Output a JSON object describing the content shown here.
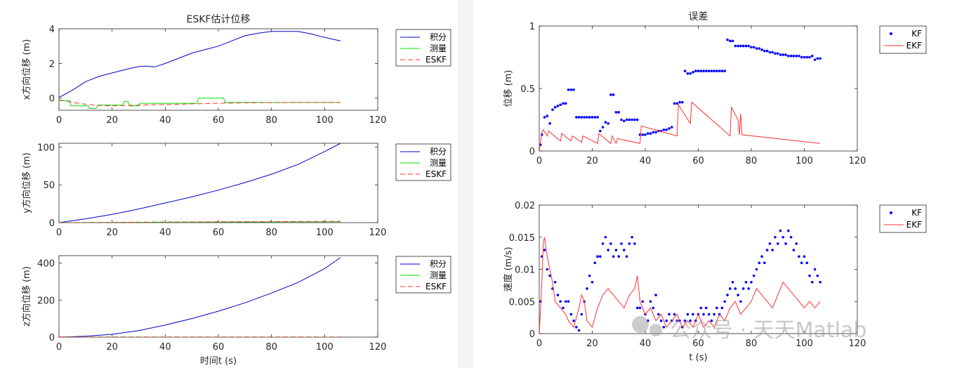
{
  "watermark": "公众号 · 天天Matlab",
  "colors": {
    "blue": "#0000ff",
    "navy": "#0000c8",
    "green": "#00e000",
    "red": "#ff3030",
    "axis": "#262626"
  },
  "chart_data": [
    {
      "id": "x",
      "type": "line",
      "title": "ESKF估计位移",
      "ylabel": "x方向位移 (m)",
      "xlabel": "",
      "xlim": [
        0,
        120
      ],
      "ylim": [
        -0.7,
        4
      ],
      "xticks": [
        0,
        20,
        40,
        60,
        80,
        100,
        120
      ],
      "yticks": [
        0,
        2,
        4
      ],
      "legend": [
        "积分",
        "测量",
        "ESKF"
      ],
      "series": [
        {
          "name": "积分",
          "x": [
            0,
            2,
            5,
            10,
            15,
            20,
            25,
            30,
            33,
            36,
            40,
            45,
            50,
            55,
            60,
            65,
            70,
            75,
            80,
            85,
            90,
            95,
            100,
            106
          ],
          "y": [
            0.05,
            0.2,
            0.45,
            0.95,
            1.25,
            1.45,
            1.65,
            1.82,
            1.85,
            1.8,
            2.0,
            2.3,
            2.6,
            2.8,
            3.0,
            3.3,
            3.6,
            3.75,
            3.85,
            3.85,
            3.85,
            3.7,
            3.5,
            3.3
          ]
        },
        {
          "name": "测量",
          "x": [
            0,
            4,
            4.5,
            11,
            11.5,
            14,
            14.5,
            24,
            24.5,
            26,
            26.5,
            30,
            30.5,
            52,
            52.5,
            62,
            62.5,
            106
          ],
          "y": [
            -0.15,
            -0.15,
            -0.45,
            -0.45,
            -0.6,
            -0.6,
            -0.4,
            -0.4,
            -0.2,
            -0.2,
            -0.45,
            -0.45,
            -0.3,
            -0.3,
            0,
            0,
            -0.25,
            -0.25
          ]
        },
        {
          "name": "ESKF",
          "x": [
            0,
            5,
            10,
            15,
            20,
            25,
            30,
            40,
            50,
            60,
            70,
            80,
            90,
            106
          ],
          "y": [
            -0.1,
            -0.25,
            -0.35,
            -0.42,
            -0.44,
            -0.43,
            -0.4,
            -0.37,
            -0.33,
            -0.3,
            -0.27,
            -0.26,
            -0.25,
            -0.25
          ]
        }
      ]
    },
    {
      "id": "y",
      "type": "line",
      "title": "",
      "ylabel": "y方向位移 (m)",
      "xlabel": "",
      "xlim": [
        0,
        120
      ],
      "ylim": [
        0,
        105
      ],
      "xticks": [
        0,
        20,
        40,
        60,
        80,
        100,
        120
      ],
      "yticks": [
        0,
        50,
        100
      ],
      "legend": [
        "积分",
        "测量",
        "ESKF"
      ],
      "series": [
        {
          "name": "积分",
          "x": [
            0,
            10,
            20,
            30,
            40,
            50,
            60,
            70,
            80,
            90,
            100,
            106
          ],
          "y": [
            0,
            5,
            11,
            18,
            26,
            34,
            43,
            53,
            64,
            77,
            94,
            105
          ]
        },
        {
          "name": "测量",
          "x": [
            0,
            20,
            40,
            60,
            80,
            100,
            106
          ],
          "y": [
            0,
            0.3,
            0.6,
            0.8,
            1,
            1.2,
            1.3
          ]
        },
        {
          "name": "ESKF",
          "x": [
            0,
            20,
            40,
            60,
            80,
            100,
            106
          ],
          "y": [
            0,
            0.4,
            0.8,
            1.1,
            1.4,
            1.6,
            1.7
          ]
        }
      ]
    },
    {
      "id": "z",
      "type": "line",
      "title": "",
      "ylabel": "z方向位移 (m)",
      "xlabel": "时间t (s)",
      "xlim": [
        0,
        120
      ],
      "ylim": [
        0,
        440
      ],
      "xticks": [
        0,
        20,
        40,
        60,
        80,
        100,
        120
      ],
      "yticks": [
        0,
        200,
        400
      ],
      "legend": [
        "积分",
        "测量",
        "ESKF"
      ],
      "series": [
        {
          "name": "积分",
          "x": [
            0,
            10,
            20,
            30,
            40,
            50,
            60,
            70,
            80,
            90,
            100,
            106
          ],
          "y": [
            0,
            5,
            15,
            35,
            65,
            100,
            140,
            185,
            238,
            295,
            370,
            430
          ]
        },
        {
          "name": "测量",
          "x": [
            0,
            106
          ],
          "y": [
            0,
            0
          ]
        },
        {
          "name": "ESKF",
          "x": [
            0,
            106
          ],
          "y": [
            1,
            1
          ]
        }
      ]
    },
    {
      "id": "pos",
      "type": "scatter",
      "title": "误差",
      "ylabel": "位移 (m)",
      "xlabel": "",
      "xlim": [
        0,
        120
      ],
      "ylim": [
        0,
        1
      ],
      "xticks": [
        0,
        20,
        40,
        60,
        80,
        100,
        120
      ],
      "yticks": [
        0,
        0.5,
        1
      ],
      "legend": [
        "KF",
        "EKF"
      ],
      "series": [
        {
          "name": "KF",
          "x": [
            0.5,
            1,
            2,
            3,
            4,
            5,
            6,
            7,
            8,
            9,
            10,
            11,
            12,
            13,
            14,
            15,
            16,
            17,
            18,
            19,
            20,
            21,
            22,
            23,
            24,
            25,
            26,
            27,
            28,
            29,
            30,
            31,
            32,
            33,
            34,
            35,
            36,
            37,
            38,
            39,
            40,
            41,
            42,
            43,
            44,
            45,
            46,
            47,
            48,
            49,
            50,
            51,
            52,
            53,
            54,
            55,
            56,
            57,
            58,
            59,
            60,
            61,
            62,
            63,
            64,
            65,
            66,
            67,
            68,
            69,
            70,
            71,
            72,
            73,
            74,
            75,
            76,
            77,
            78,
            79,
            80,
            81,
            82,
            83,
            84,
            85,
            86,
            87,
            88,
            89,
            90,
            91,
            92,
            93,
            94,
            95,
            96,
            97,
            98,
            99,
            100,
            101,
            102,
            103,
            104,
            105,
            106
          ],
          "y": [
            0.05,
            0.13,
            0.27,
            0.28,
            0.22,
            0.33,
            0.35,
            0.36,
            0.37,
            0.38,
            0.38,
            0.49,
            0.49,
            0.49,
            0.27,
            0.27,
            0.27,
            0.27,
            0.27,
            0.27,
            0.27,
            0.27,
            0.27,
            0.16,
            0.19,
            0.23,
            0.22,
            0.45,
            0.45,
            0.31,
            0.31,
            0.25,
            0.24,
            0.25,
            0.25,
            0.25,
            0.25,
            0.25,
            0.13,
            0.13,
            0.13,
            0.14,
            0.14,
            0.15,
            0.15,
            0.16,
            0.16,
            0.17,
            0.17,
            0.18,
            0.19,
            0.38,
            0.38,
            0.39,
            0.39,
            0.64,
            0.62,
            0.62,
            0.63,
            0.64,
            0.64,
            0.64,
            0.64,
            0.64,
            0.64,
            0.64,
            0.64,
            0.64,
            0.64,
            0.64,
            0.64,
            0.89,
            0.88,
            0.88,
            0.84,
            0.84,
            0.84,
            0.84,
            0.84,
            0.84,
            0.83,
            0.83,
            0.82,
            0.82,
            0.81,
            0.8,
            0.8,
            0.79,
            0.79,
            0.78,
            0.78,
            0.77,
            0.77,
            0.77,
            0.76,
            0.76,
            0.76,
            0.76,
            0.76,
            0.75,
            0.75,
            0.75,
            0.75,
            0.76,
            0.73,
            0.74,
            0.74
          ]
        },
        {
          "name": "EKF",
          "x": [
            0,
            1,
            1.5,
            3,
            3.5,
            8,
            8.5,
            12,
            12.5,
            16,
            16.5,
            22,
            22.5,
            27,
            27.5,
            29,
            29.5,
            38,
            38.5,
            52,
            52.5,
            57,
            57.5,
            72,
            72.5,
            75,
            75.5,
            76,
            76.5,
            106
          ],
          "y": [
            0,
            0.15,
            0.17,
            0.12,
            0.16,
            0.08,
            0.14,
            0.08,
            0.12,
            0.07,
            0.12,
            0.06,
            0.14,
            0.06,
            0.12,
            0.06,
            0.1,
            0.06,
            0.2,
            0.12,
            0.37,
            0.22,
            0.39,
            0.12,
            0.35,
            0.25,
            0.13,
            0.3,
            0.13,
            0.06
          ]
        }
      ]
    },
    {
      "id": "vel",
      "type": "scatter",
      "title": "",
      "ylabel": "速度 (m/s)",
      "xlabel": "t (s)",
      "xlim": [
        0,
        120
      ],
      "ylim": [
        0,
        0.02
      ],
      "xticks": [
        0,
        20,
        40,
        60,
        80,
        100,
        120
      ],
      "yticks": [
        0,
        0.005,
        0.01,
        0.015,
        0.02
      ],
      "legend": [
        "KF",
        "EKF"
      ],
      "series": [
        {
          "name": "KF",
          "x": [
            0.5,
            1,
            2,
            3,
            4,
            5,
            6,
            7,
            8,
            9,
            10,
            11,
            12,
            13,
            14,
            15,
            16,
            17,
            18,
            19,
            20,
            21,
            22,
            23,
            24,
            25,
            26,
            27,
            28,
            29,
            30,
            31,
            32,
            33,
            34,
            35,
            36,
            37,
            38,
            39,
            40,
            41,
            42,
            43,
            44,
            45,
            46,
            47,
            48,
            49,
            50,
            51,
            52,
            53,
            54,
            55,
            56,
            57,
            58,
            59,
            60,
            61,
            62,
            63,
            64,
            65,
            66,
            67,
            68,
            69,
            70,
            71,
            72,
            73,
            74,
            75,
            76,
            77,
            78,
            79,
            80,
            81,
            82,
            83,
            84,
            85,
            86,
            87,
            88,
            89,
            90,
            91,
            92,
            93,
            94,
            95,
            96,
            97,
            98,
            99,
            100,
            101,
            102,
            103,
            104,
            105,
            106
          ],
          "y": [
            0.005,
            0.012,
            0.013,
            0.01,
            0.009,
            0.007,
            0.008,
            0.006,
            0.005,
            0.004,
            0.005,
            0.005,
            0.003,
            0.002,
            0.001,
            0.0005,
            0.003,
            0.005,
            0.007,
            0.009,
            0.008,
            0.011,
            0.012,
            0.012,
            0.014,
            0.015,
            0.013,
            0.014,
            0.012,
            0.013,
            0.012,
            0.014,
            0.013,
            0.012,
            0.014,
            0.015,
            0.014,
            0.004,
            0.004,
            0.005,
            0.003,
            0.002,
            0.005,
            0.004,
            0.006,
            0.003,
            0.002,
            0.001,
            0.002,
            0.003,
            0.002,
            0.003,
            0.002,
            0.002,
            0.001,
            0.002,
            0.003,
            0.002,
            0.003,
            0.002,
            0.003,
            0.004,
            0.003,
            0.004,
            0.003,
            0.002,
            0.003,
            0.004,
            0.003,
            0.004,
            0.005,
            0.006,
            0.007,
            0.008,
            0.007,
            0.006,
            0.005,
            0.007,
            0.008,
            0.007,
            0.008,
            0.009,
            0.01,
            0.011,
            0.012,
            0.011,
            0.013,
            0.014,
            0.013,
            0.015,
            0.014,
            0.016,
            0.015,
            0.014,
            0.016,
            0.015,
            0.013,
            0.014,
            0.012,
            0.011,
            0.012,
            0.011,
            0.009,
            0.008,
            0.01,
            0.009,
            0.008
          ]
        },
        {
          "name": "EKF",
          "x": [
            0,
            1,
            1.5,
            2,
            3,
            4,
            5,
            6,
            8,
            10,
            11,
            13,
            15,
            16,
            17,
            18,
            20,
            22,
            24,
            26,
            28,
            30,
            32,
            34,
            36,
            37,
            38,
            40,
            42,
            44,
            46,
            48,
            50,
            52,
            54,
            56,
            58,
            60,
            62,
            64,
            66,
            68,
            70,
            72,
            74,
            76,
            78,
            80,
            82,
            84,
            86,
            88,
            90,
            92,
            94,
            96,
            98,
            100,
            102,
            104,
            106
          ],
          "y": [
            0,
            0.008,
            0.014,
            0.015,
            0.012,
            0.01,
            0.008,
            0.005,
            0.004,
            0.003,
            0.002,
            0.001,
            0.004,
            0.006,
            0.005,
            0.002,
            0.001,
            0.004,
            0.006,
            0.007,
            0.006,
            0.005,
            0.004,
            0.006,
            0.007,
            0.009,
            0.005,
            0.003,
            0.004,
            0.002,
            0.003,
            0.001,
            0.002,
            0.003,
            0.001,
            0.002,
            0.001,
            0.003,
            0.001,
            0.002,
            0.001,
            0.003,
            0.002,
            0.004,
            0.005,
            0.003,
            0.004,
            0.005,
            0.007,
            0.006,
            0.005,
            0.004,
            0.006,
            0.008,
            0.007,
            0.006,
            0.005,
            0.004,
            0.005,
            0.004,
            0.005
          ]
        }
      ]
    }
  ]
}
